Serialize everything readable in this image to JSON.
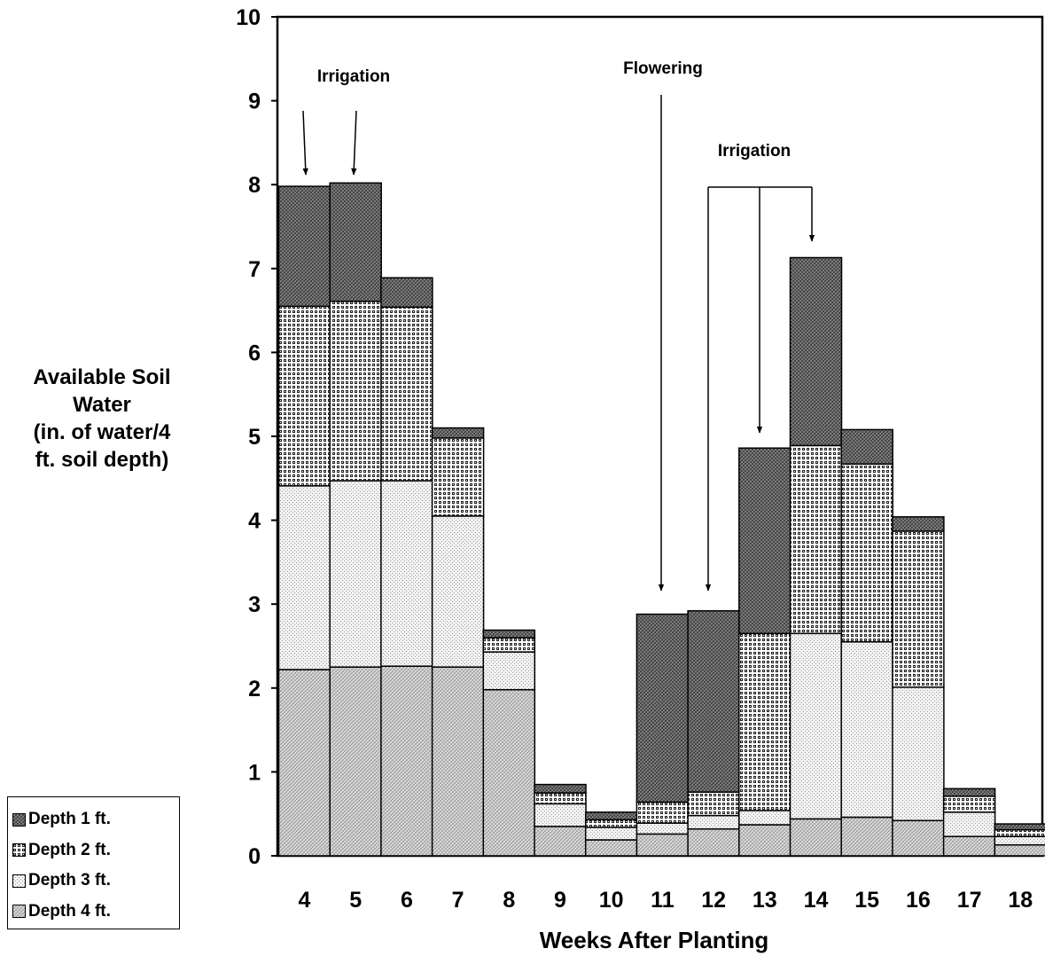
{
  "chart_data": {
    "type": "bar",
    "stacked": true,
    "title": "",
    "xlabel": "Weeks After Planting",
    "ylabel_lines": [
      "Available Soil",
      "Water",
      "(in. of water/4",
      "ft. soil depth)"
    ],
    "ylim": [
      0,
      10
    ],
    "yticks": [
      "0",
      "1",
      "2",
      "3",
      "4",
      "5",
      "6",
      "7",
      "8",
      "9",
      "10"
    ],
    "categories": [
      "4",
      "5",
      "6",
      "7",
      "8",
      "9",
      "10",
      "11",
      "12",
      "13",
      "14",
      "15",
      "16",
      "17",
      "18"
    ],
    "series": [
      {
        "name": "Depth 4 ft.",
        "pattern": "pat-d4",
        "values": [
          2.22,
          2.25,
          2.26,
          2.25,
          1.98,
          0.35,
          0.19,
          0.26,
          0.32,
          0.37,
          0.44,
          0.46,
          0.42,
          0.23,
          0.13
        ]
      },
      {
        "name": "Depth 3 ft.",
        "pattern": "pat-d3",
        "values": [
          2.19,
          2.22,
          2.21,
          1.8,
          0.45,
          0.27,
          0.15,
          0.13,
          0.16,
          0.17,
          2.21,
          2.09,
          1.59,
          0.29,
          0.1
        ]
      },
      {
        "name": "Depth 2 ft.",
        "pattern": "pat-d2",
        "values": [
          2.14,
          2.14,
          2.07,
          0.93,
          0.17,
          0.13,
          0.09,
          0.25,
          0.28,
          2.11,
          2.24,
          2.12,
          1.86,
          0.19,
          0.08
        ]
      },
      {
        "name": "Depth 1 ft.",
        "pattern": "pat-d1",
        "values": [
          1.43,
          1.41,
          0.35,
          0.12,
          0.09,
          0.1,
          0.09,
          2.24,
          2.16,
          2.21,
          2.24,
          0.41,
          0.17,
          0.09,
          0.07
        ]
      }
    ],
    "legend_order": [
      "Depth 1 ft.",
      "Depth 2 ft.",
      "Depth 3 ft.",
      "Depth 4 ft."
    ],
    "legend_placement": "bottom-left",
    "grid": false,
    "annotations": [
      {
        "text": "Irrigation",
        "arrows_to": [
          "4",
          "5"
        ]
      },
      {
        "text": "Flowering",
        "arrows_to": [
          "11"
        ]
      },
      {
        "text": "Irrigation",
        "arrows_to": [
          "12",
          "13",
          "14"
        ]
      }
    ]
  }
}
